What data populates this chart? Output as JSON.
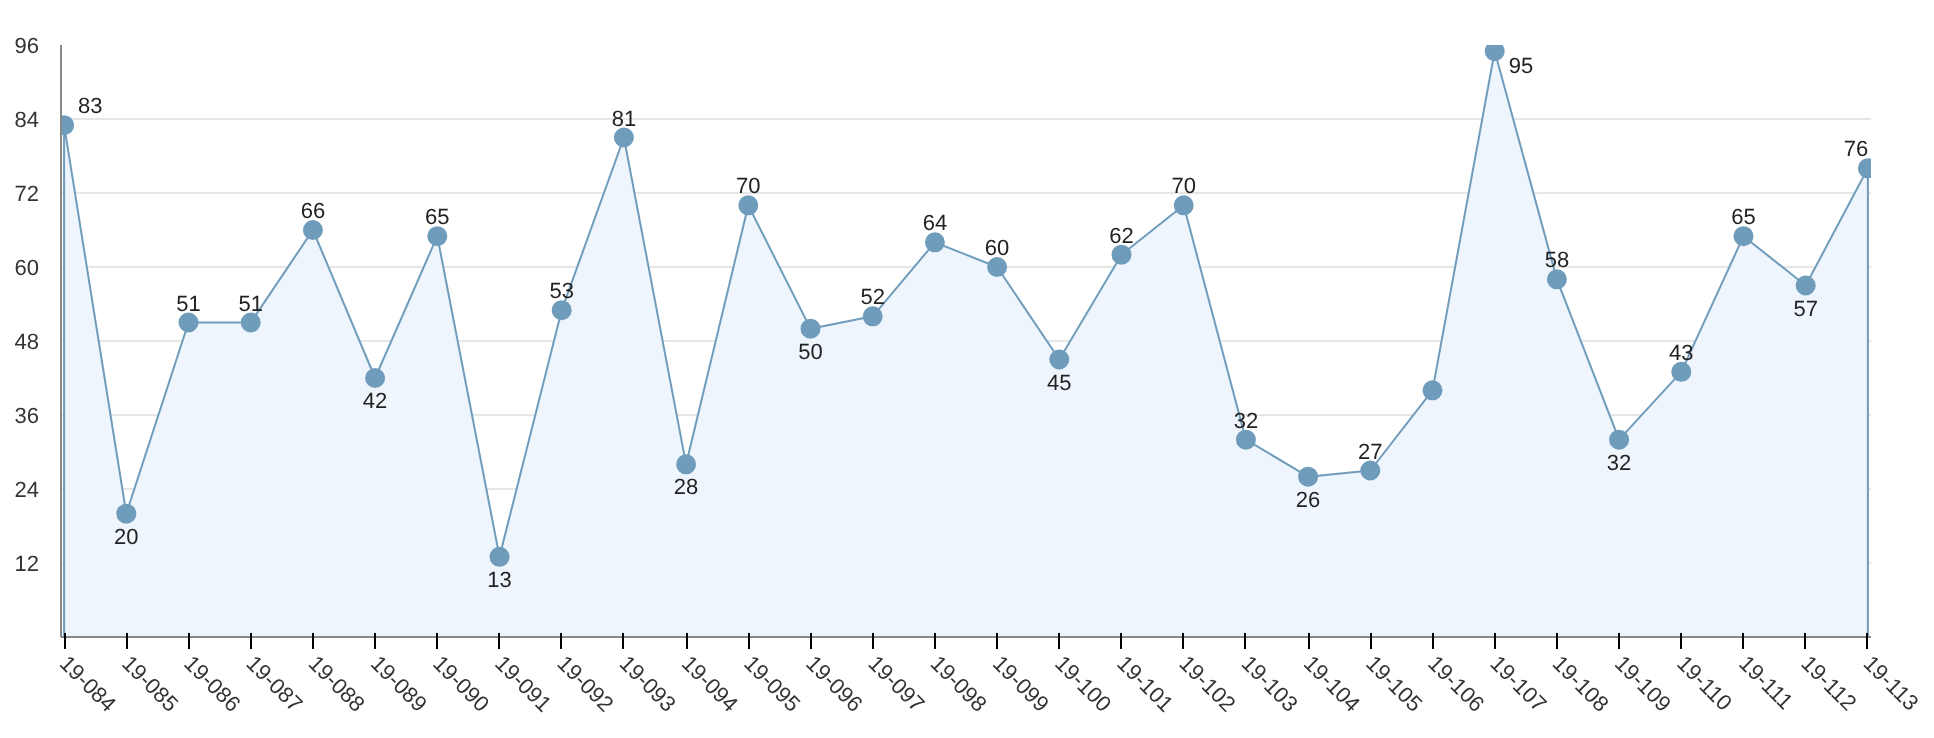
{
  "chart_data": {
    "type": "area",
    "categories": [
      "19-084",
      "19-085",
      "19-086",
      "19-087",
      "19-088",
      "19-089",
      "19-090",
      "19-091",
      "19-092",
      "19-093",
      "19-094",
      "19-095",
      "19-096",
      "19-097",
      "19-098",
      "19-099",
      "19-100",
      "19-101",
      "19-102",
      "19-103",
      "19-104",
      "19-105",
      "19-106",
      "19-107",
      "19-108",
      "19-109",
      "19-110",
      "19-111",
      "19-112",
      "19-113"
    ],
    "series": [
      {
        "color": "#6f9cbb",
        "values": [
          83,
          20,
          51,
          51,
          66,
          42,
          65,
          13,
          53,
          81,
          28,
          70,
          50,
          52,
          64,
          60,
          45,
          62,
          70,
          32,
          26,
          27,
          40,
          95,
          58,
          32,
          43,
          65,
          57,
          76
        ],
        "value_labels": [
          "83",
          "20",
          "51",
          "51",
          "66",
          "42",
          "65",
          "13",
          "53",
          "81",
          "28",
          "70",
          "50",
          "52",
          "64",
          "60",
          "45",
          "62",
          "70",
          "32",
          "26",
          "27",
          null,
          "95",
          "58",
          "32",
          "43",
          "65",
          "57",
          "76"
        ]
      }
    ],
    "ylim": [
      0,
      96
    ],
    "yticks": [
      12,
      24,
      36,
      48,
      60,
      72,
      84,
      96
    ],
    "grid": "y",
    "marker": "circle",
    "line_style": "solid"
  }
}
